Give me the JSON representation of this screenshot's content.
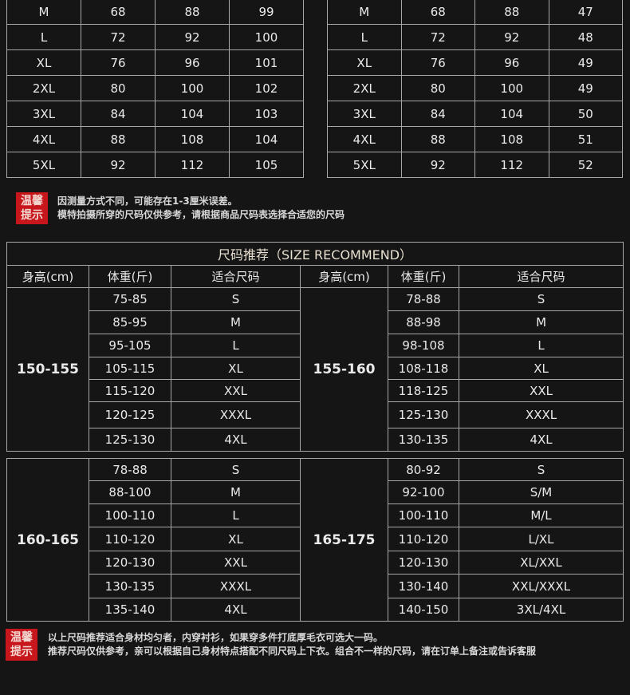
{
  "size_tables": [
    {
      "rows": [
        [
          "M",
          "68",
          "88",
          "99"
        ],
        [
          "L",
          "72",
          "92",
          "100"
        ],
        [
          "XL",
          "76",
          "96",
          "101"
        ],
        [
          "2XL",
          "80",
          "100",
          "102"
        ],
        [
          "3XL",
          "84",
          "104",
          "103"
        ],
        [
          "4XL",
          "88",
          "108",
          "104"
        ],
        [
          "5XL",
          "92",
          "112",
          "105"
        ]
      ]
    },
    {
      "rows": [
        [
          "M",
          "68",
          "88",
          "47"
        ],
        [
          "L",
          "72",
          "92",
          "48"
        ],
        [
          "XL",
          "76",
          "96",
          "49"
        ],
        [
          "2XL",
          "80",
          "100",
          "49"
        ],
        [
          "3XL",
          "84",
          "104",
          "50"
        ],
        [
          "4XL",
          "88",
          "108",
          "51"
        ],
        [
          "5XL",
          "92",
          "112",
          "52"
        ]
      ]
    }
  ],
  "tip1": {
    "badge": "温馨提示",
    "line1": "因测量方式不同，可能存在1-3厘米误差。",
    "line2": "模特拍摄所穿的尺码仅供参考，请根据商品尺码表选择合适您的尺码"
  },
  "recommend": {
    "title": "尺码推荐（SIZE RECOMMEND）",
    "headers": [
      "身高(cm)",
      "体重(斤)",
      "适合尺码",
      "身高(cm)",
      "体重(斤)",
      "适合尺码"
    ],
    "block1": {
      "left_height": "150-155",
      "right_height": "155-160",
      "rows": [
        [
          "75-85",
          "S",
          "78-88",
          "S"
        ],
        [
          "85-95",
          "M",
          "88-98",
          "M"
        ],
        [
          "95-105",
          "L",
          "98-108",
          "L"
        ],
        [
          "105-115",
          "XL",
          "108-118",
          "XL"
        ],
        [
          "115-120",
          "XXL",
          "118-125",
          "XXL"
        ],
        [
          "120-125",
          "XXXL",
          "125-130",
          "XXXL"
        ],
        [
          "125-130",
          "4XL",
          "130-135",
          "4XL"
        ]
      ]
    },
    "block2": {
      "left_height": "160-165",
      "right_height": "165-175",
      "rows": [
        [
          "78-88",
          "S",
          "80-92",
          "S"
        ],
        [
          "88-100",
          "M",
          "92-100",
          "S/M"
        ],
        [
          "100-110",
          "L",
          "100-110",
          "M/L"
        ],
        [
          "110-120",
          "XL",
          "110-120",
          "L/XL"
        ],
        [
          "120-130",
          "XXL",
          "120-130",
          "XL/XXL"
        ],
        [
          "130-135",
          "XXXL",
          "130-140",
          "XXL/XXXL"
        ],
        [
          "135-140",
          "4XL",
          "140-150",
          "3XL/4XL"
        ]
      ]
    }
  },
  "tip2": {
    "badge": "温馨提示",
    "line1": "以上尺码推荐适合身材均匀者，内穿衬衫，如果穿多件打底厚毛衣可选大一码。",
    "line2": "推荐尺码仅供参考，亲可以根据自己身材特点搭配不同尺码上下衣。组合不一样的尺码，请在订单上备注或告诉客服"
  },
  "colors": {
    "background": "#151515",
    "badge": "#c8161d"
  }
}
